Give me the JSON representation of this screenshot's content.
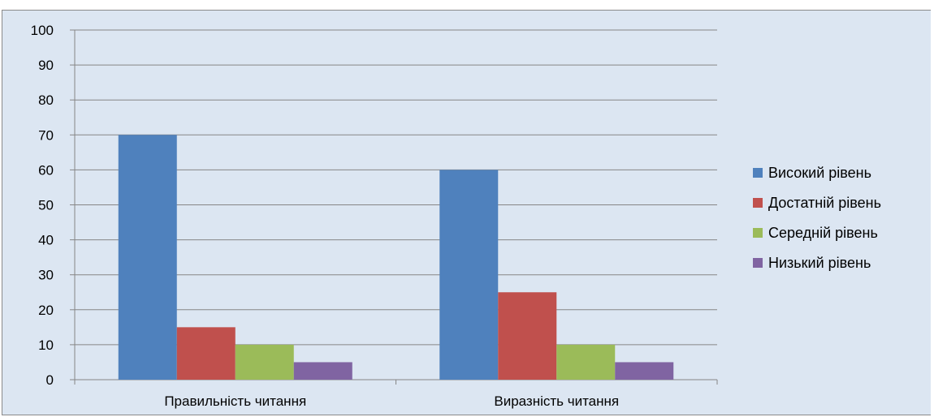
{
  "chart_data": {
    "type": "bar",
    "categories": [
      "Правильність читання",
      "Виразність читання"
    ],
    "series": [
      {
        "name": "Високий рівень",
        "color": "#4f81bd",
        "values": [
          70,
          60
        ]
      },
      {
        "name": "Достатній рівень",
        "color": "#c0504d",
        "values": [
          15,
          25
        ]
      },
      {
        "name": "Середній рівень",
        "color": "#9bbb59",
        "values": [
          10,
          10
        ]
      },
      {
        "name": "Низький рівень",
        "color": "#8064a2",
        "values": [
          5,
          5
        ]
      }
    ],
    "ylim": [
      0,
      100
    ],
    "yticks": [
      "0",
      "10",
      "20",
      "30",
      "40",
      "50",
      "60",
      "70",
      "80",
      "90",
      "100"
    ],
    "grid": true,
    "legend": "right",
    "title": "",
    "xlabel": "",
    "ylabel": ""
  }
}
